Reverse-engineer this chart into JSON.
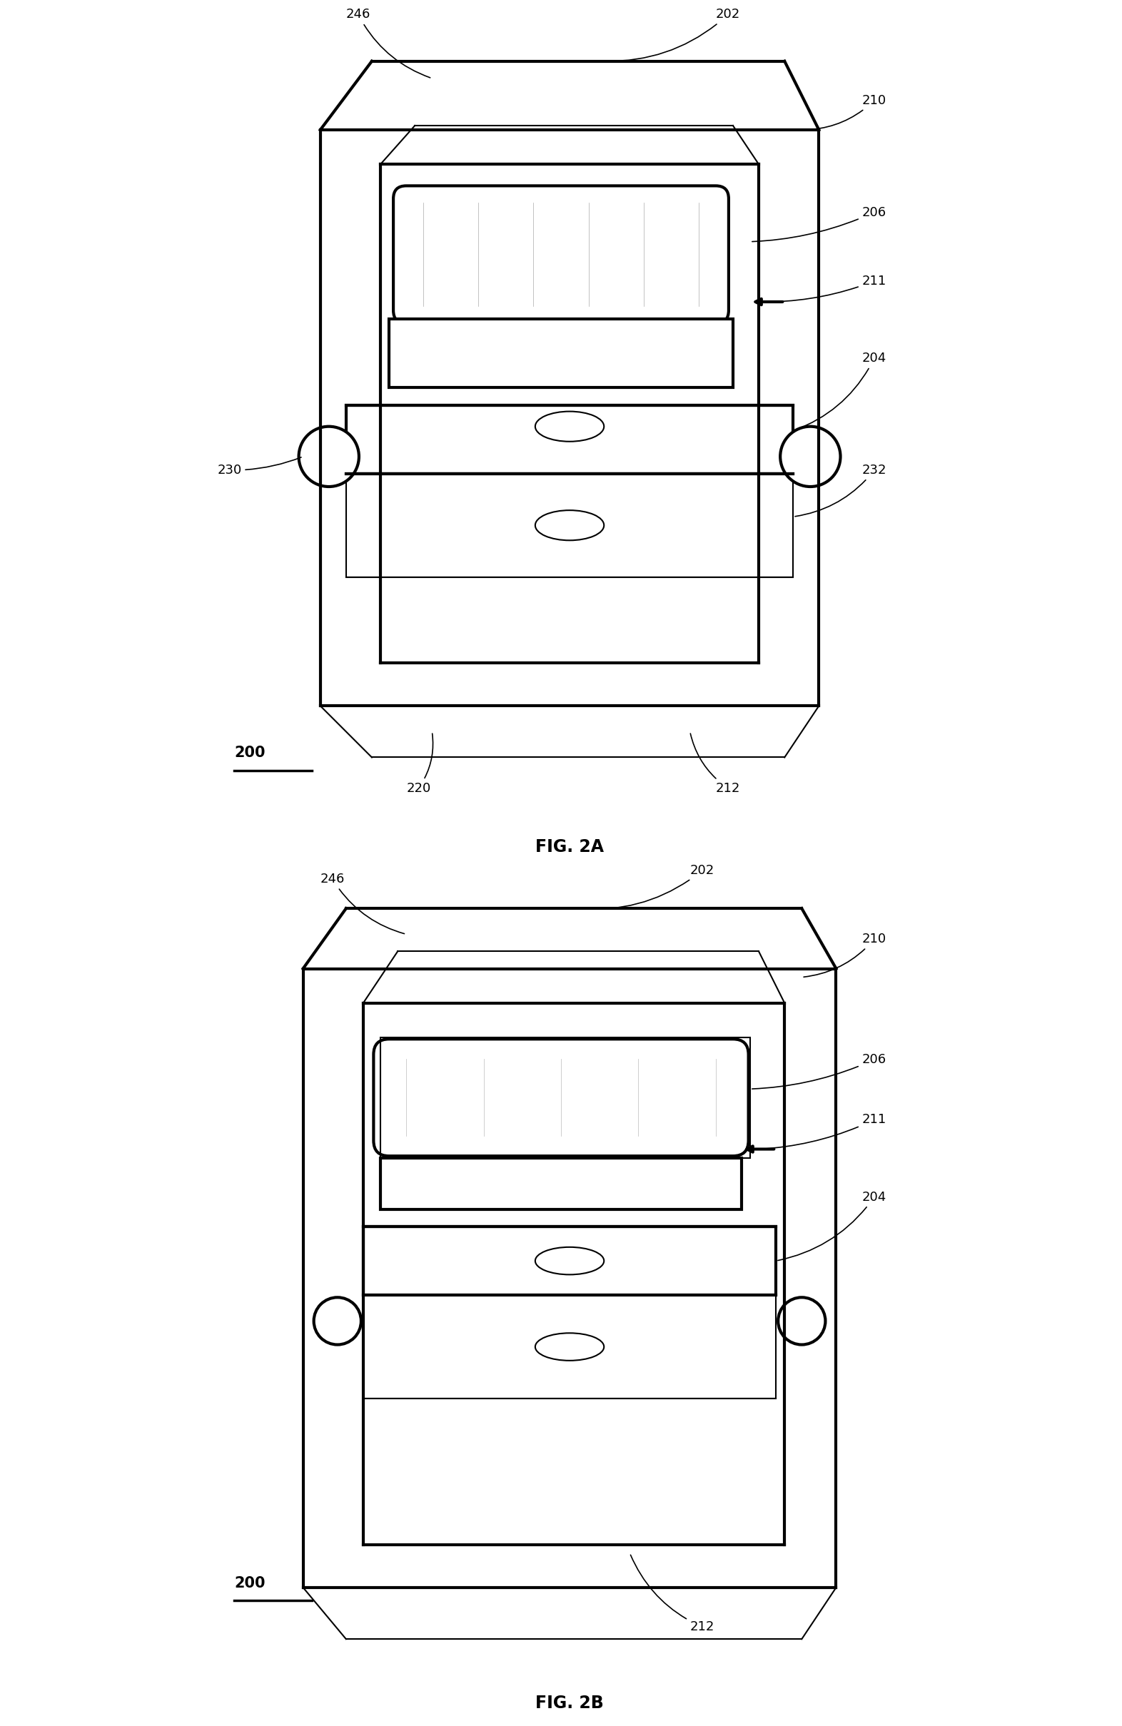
{
  "fig_title_a": "FIG. 2A",
  "fig_title_b": "FIG. 2B",
  "label_200": "200",
  "label_202": "202",
  "label_204": "204",
  "label_206": "206",
  "label_210": "210",
  "label_211": "211",
  "label_212": "212",
  "label_220": "220",
  "label_230": "230",
  "label_232": "232",
  "label_246": "246",
  "bg_color": "#ffffff",
  "line_color": "#000000",
  "lw": 1.5,
  "lw_thick": 3.0
}
